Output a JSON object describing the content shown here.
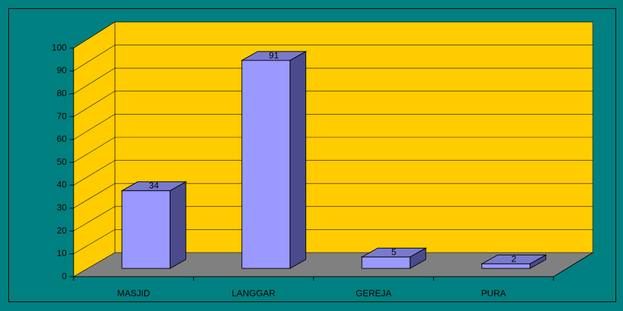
{
  "chart_data": {
    "type": "bar",
    "categories": [
      "MASJID",
      "LANGGAR",
      "GEREJA",
      "PURA"
    ],
    "values": [
      34,
      91,
      5,
      2
    ],
    "color": "#9999ff",
    "ylim": [
      0,
      100
    ],
    "yticks": [
      0,
      10,
      20,
      30,
      40,
      50,
      60,
      70,
      80,
      90,
      100
    ],
    "grid": true
  }
}
